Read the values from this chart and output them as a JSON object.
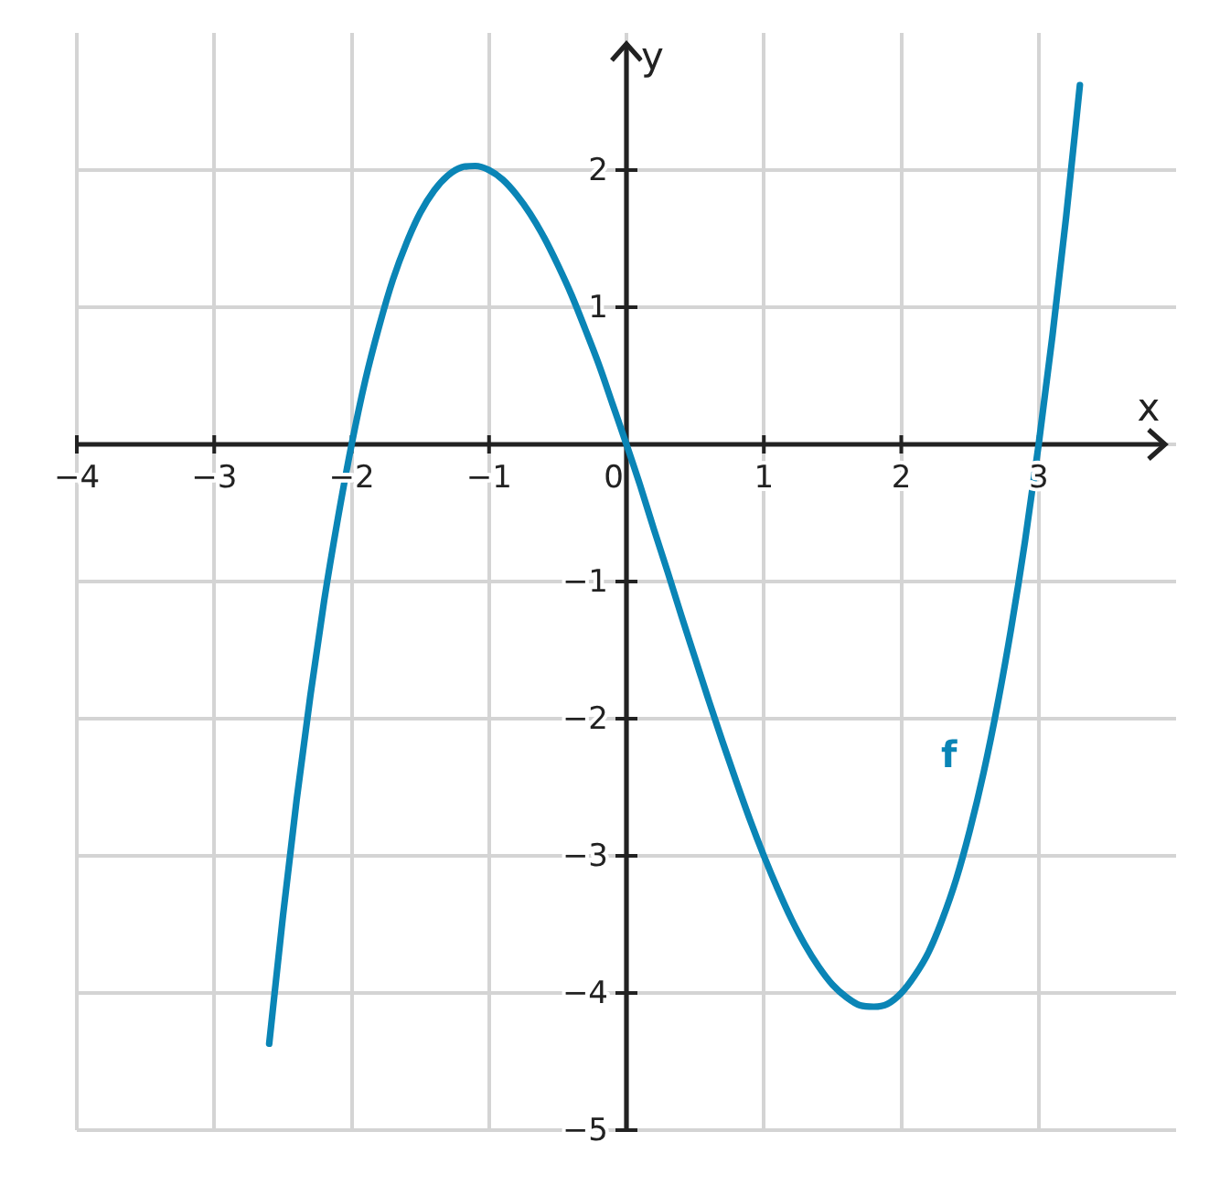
{
  "chart_data": {
    "type": "line",
    "xlabel": "x",
    "ylabel": "y",
    "xlim": [
      -4,
      4
    ],
    "ylim": [
      -5,
      3
    ],
    "xticks": [
      {
        "value": -4,
        "label": "−4"
      },
      {
        "value": -3,
        "label": "−3"
      },
      {
        "value": -2,
        "label": "−2"
      },
      {
        "value": -1,
        "label": "−1"
      },
      0,
      1,
      2,
      3
    ],
    "yticks": [
      {
        "value": -5,
        "label": "−5"
      },
      {
        "value": -4,
        "label": "−4"
      },
      {
        "value": -3,
        "label": "−3"
      },
      {
        "value": -2,
        "label": "−2"
      },
      {
        "value": -1,
        "label": "−1"
      },
      {
        "value": 0,
        "label": null
      },
      1,
      2
    ],
    "grid": true,
    "marker": "none",
    "line_style": "solid",
    "series": [
      {
        "name": "f",
        "color": "#0a85b6",
        "x": [
          -2.6,
          -2.5,
          -2.4,
          -2.3,
          -2.2,
          -2.1,
          -2.0,
          -1.9,
          -1.8,
          -1.7,
          -1.6,
          -1.5,
          -1.4,
          -1.3,
          -1.2,
          -1.1,
          -1.0,
          -0.9,
          -0.8,
          -0.7,
          -0.6,
          -0.5,
          -0.4,
          -0.3,
          -0.2,
          -0.1,
          0,
          0.1,
          0.2,
          0.3,
          0.4,
          0.5,
          0.6,
          0.7,
          0.8,
          0.9,
          1.0,
          1.1,
          1.2,
          1.3,
          1.4,
          1.5,
          1.6,
          1.7,
          1.8,
          1.9,
          2.0,
          2.1,
          2.2,
          2.3,
          2.4,
          2.5,
          2.6,
          2.7,
          2.8,
          2.9,
          3.0,
          3.1,
          3.2,
          3.3
        ],
        "values": [
          -4.37,
          -3.44,
          -2.59,
          -1.83,
          -1.14,
          -0.54,
          0,
          0.47,
          0.86,
          1.2,
          1.47,
          1.69,
          1.85,
          1.96,
          2.02,
          2.03,
          2,
          1.93,
          1.82,
          1.68,
          1.51,
          1.31,
          1.09,
          0.84,
          0.58,
          0.29,
          0,
          -0.3,
          -0.62,
          -0.93,
          -1.25,
          -1.56,
          -1.87,
          -2.17,
          -2.46,
          -2.74,
          -3,
          -3.24,
          -3.46,
          -3.65,
          -3.81,
          -3.94,
          -4.03,
          -4.09,
          -4.1,
          -4.08,
          -4,
          -3.87,
          -3.7,
          -3.46,
          -3.17,
          -2.81,
          -2.39,
          -1.9,
          -1.34,
          -0.71,
          0,
          0.79,
          1.66,
          2.62
        ]
      }
    ]
  }
}
